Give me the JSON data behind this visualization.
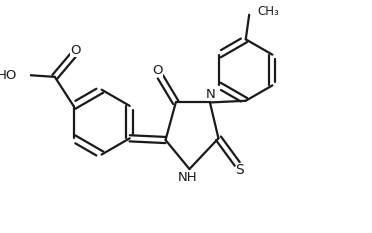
{
  "bg_color": "#ffffff",
  "line_color": "#1a1a1a",
  "line_width": 1.6,
  "fig_width": 3.72,
  "fig_height": 2.33,
  "dpi": 100,
  "xlim": [
    0,
    10
  ],
  "ylim": [
    0,
    6.3
  ]
}
